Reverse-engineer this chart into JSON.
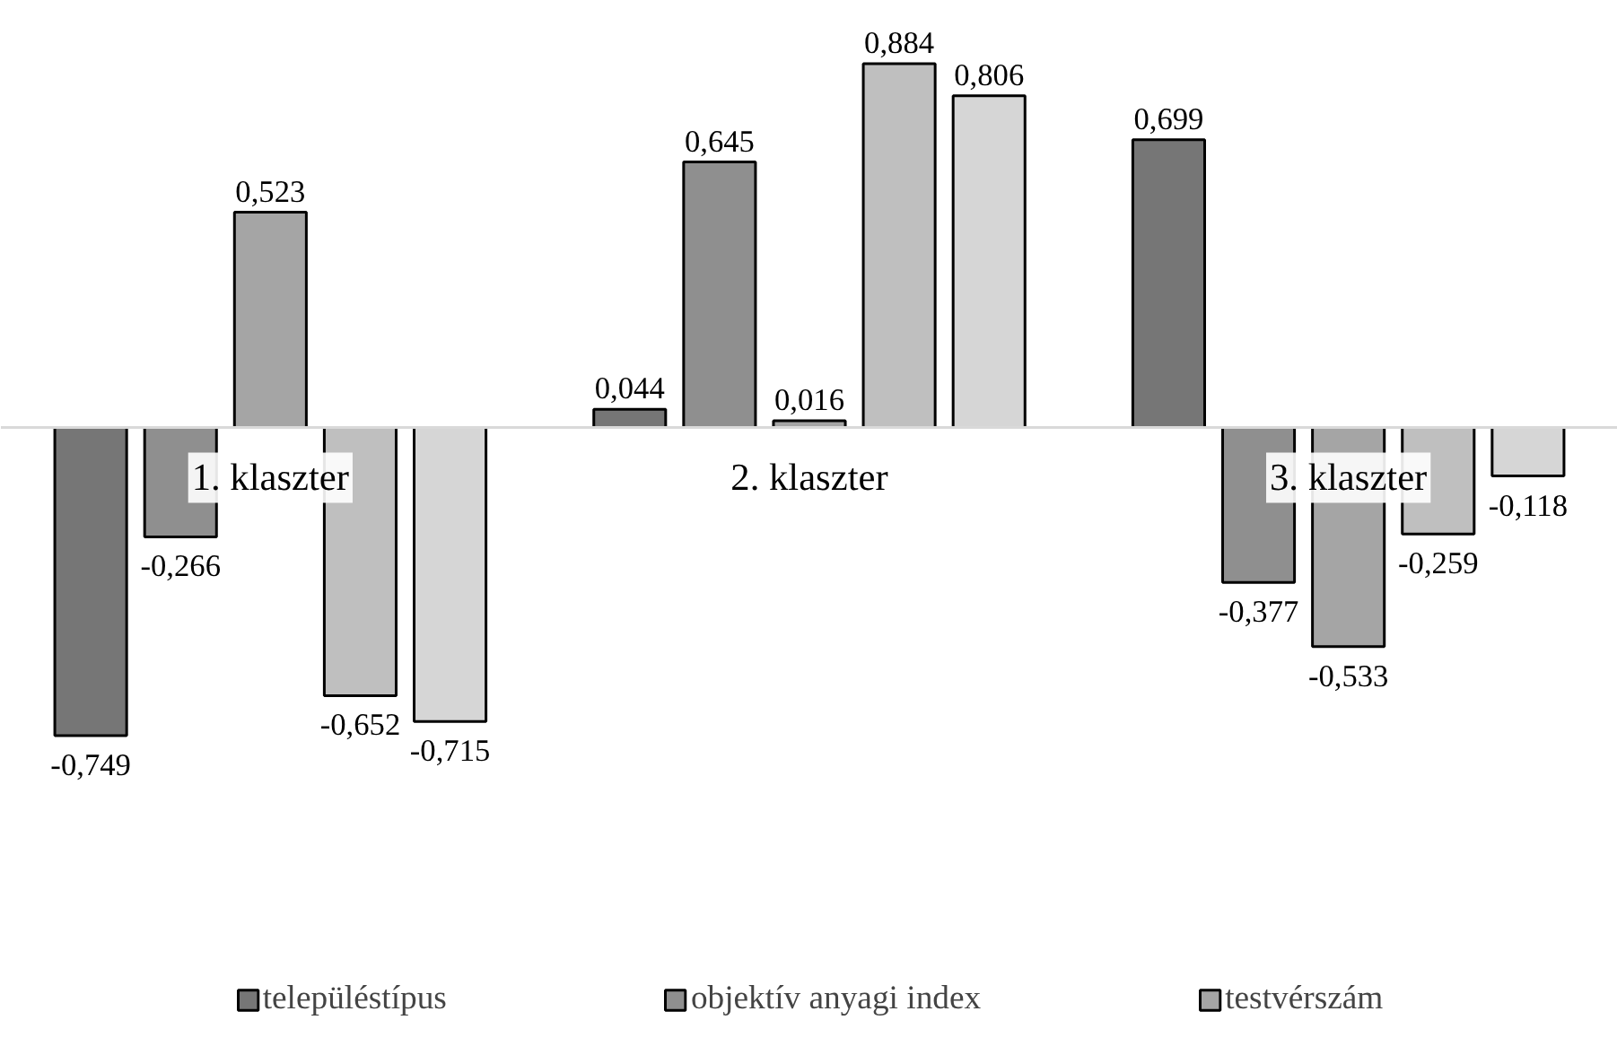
{
  "chart_data": {
    "type": "bar",
    "categories": [
      "1. klaszter",
      "2. klaszter",
      "3. klaszter"
    ],
    "legend": "bottom",
    "grid": false,
    "series": [
      {
        "name": "településtípus",
        "color": "#767676",
        "values": [
          -0.749,
          0.044,
          0.699
        ],
        "value_labels": [
          "-0,749",
          "0,044",
          "0,699"
        ]
      },
      {
        "name": "objektív anyagi index",
        "color": "#8f8f8f",
        "values": [
          -0.266,
          0.645,
          -0.377
        ],
        "value_labels": [
          "-0,266",
          "0,645",
          "-0,377"
        ]
      },
      {
        "name": "testvérszám",
        "color": "#a5a5a5",
        "values": [
          0.523,
          0.016,
          -0.533
        ],
        "value_labels": [
          "0,523",
          "0,016",
          "-0,533"
        ]
      },
      {
        "color": "#bfbfbf",
        "values": [
          -0.652,
          0.884,
          -0.259
        ],
        "value_labels": [
          "-0,652",
          "0,884",
          "-0,259"
        ]
      },
      {
        "color": "#d6d6d6",
        "values": [
          -0.715,
          0.806,
          -0.118
        ],
        "value_labels": [
          "-0,715",
          "0,806",
          "-0,118"
        ]
      }
    ]
  }
}
